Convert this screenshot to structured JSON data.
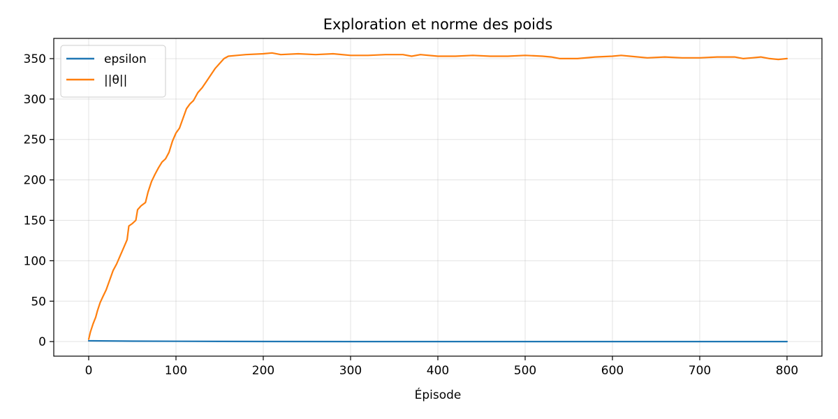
{
  "chart_data": {
    "type": "line",
    "title": "Exploration et norme des poids",
    "xlabel": "Épisode",
    "ylabel": "",
    "xlim": [
      -40,
      840
    ],
    "ylim": [
      -18,
      375
    ],
    "xticks": [
      0,
      100,
      200,
      300,
      400,
      500,
      600,
      700,
      800
    ],
    "yticks": [
      0,
      50,
      100,
      150,
      200,
      250,
      300,
      350
    ],
    "grid": true,
    "legend_position": "top-left",
    "series": [
      {
        "name": "epsilon",
        "color": "#1f77b4",
        "points": [
          [
            0,
            1.0
          ],
          [
            50,
            0.6
          ],
          [
            100,
            0.37
          ],
          [
            150,
            0.22
          ],
          [
            200,
            0.13
          ],
          [
            300,
            0.05
          ],
          [
            400,
            0.05
          ],
          [
            500,
            0.05
          ],
          [
            600,
            0.05
          ],
          [
            700,
            0.05
          ],
          [
            800,
            0.05
          ]
        ]
      },
      {
        "name": "||θ||",
        "color": "#ff7f0e",
        "points": [
          [
            0,
            3
          ],
          [
            2,
            12
          ],
          [
            5,
            22
          ],
          [
            8,
            30
          ],
          [
            10,
            38
          ],
          [
            13,
            48
          ],
          [
            16,
            55
          ],
          [
            20,
            64
          ],
          [
            24,
            76
          ],
          [
            28,
            88
          ],
          [
            32,
            96
          ],
          [
            36,
            106
          ],
          [
            40,
            116
          ],
          [
            44,
            126
          ],
          [
            46,
            143
          ],
          [
            50,
            146
          ],
          [
            54,
            150
          ],
          [
            56,
            163
          ],
          [
            60,
            168
          ],
          [
            65,
            172
          ],
          [
            68,
            185
          ],
          [
            72,
            198
          ],
          [
            76,
            207
          ],
          [
            80,
            215
          ],
          [
            84,
            222
          ],
          [
            88,
            226
          ],
          [
            92,
            234
          ],
          [
            96,
            248
          ],
          [
            100,
            258
          ],
          [
            104,
            264
          ],
          [
            108,
            276
          ],
          [
            112,
            288
          ],
          [
            116,
            294
          ],
          [
            120,
            298
          ],
          [
            125,
            308
          ],
          [
            130,
            314
          ],
          [
            135,
            322
          ],
          [
            140,
            330
          ],
          [
            145,
            338
          ],
          [
            150,
            344
          ],
          [
            155,
            350
          ],
          [
            160,
            353
          ],
          [
            170,
            354
          ],
          [
            180,
            355
          ],
          [
            200,
            356
          ],
          [
            210,
            357
          ],
          [
            220,
            355
          ],
          [
            240,
            356
          ],
          [
            260,
            355
          ],
          [
            280,
            356
          ],
          [
            300,
            354
          ],
          [
            320,
            354
          ],
          [
            340,
            355
          ],
          [
            360,
            355
          ],
          [
            370,
            353
          ],
          [
            380,
            355
          ],
          [
            400,
            353
          ],
          [
            420,
            353
          ],
          [
            440,
            354
          ],
          [
            460,
            353
          ],
          [
            480,
            353
          ],
          [
            500,
            354
          ],
          [
            520,
            353
          ],
          [
            530,
            352
          ],
          [
            540,
            350
          ],
          [
            560,
            350
          ],
          [
            580,
            352
          ],
          [
            600,
            353
          ],
          [
            610,
            354
          ],
          [
            620,
            353
          ],
          [
            640,
            351
          ],
          [
            660,
            352
          ],
          [
            680,
            351
          ],
          [
            700,
            351
          ],
          [
            720,
            352
          ],
          [
            740,
            352
          ],
          [
            750,
            350
          ],
          [
            760,
            351
          ],
          [
            770,
            352
          ],
          [
            780,
            350
          ],
          [
            790,
            349
          ],
          [
            800,
            350
          ]
        ]
      }
    ]
  }
}
